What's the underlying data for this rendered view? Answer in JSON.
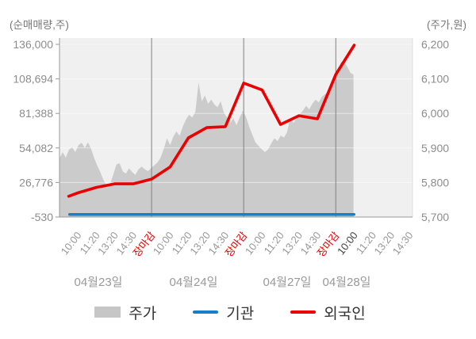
{
  "captions": {
    "left": "(순매매량,주)",
    "right": "(주가,원)"
  },
  "legend": {
    "items": [
      {
        "label": "주가",
        "type": "area",
        "color": "#c6c6c6"
      },
      {
        "label": "기관",
        "type": "line",
        "color": "#1a7ec6"
      },
      {
        "label": "외국인",
        "type": "line",
        "color": "#ea0000"
      }
    ]
  },
  "chart_data": {
    "type": "mixed-area-line",
    "title": "",
    "grid": true,
    "legend_position": "bottom",
    "x_axis": {
      "days": [
        {
          "date": "04월23일",
          "times": [
            "10:00",
            "11:20",
            "13:20",
            "14:30",
            "장마감"
          ]
        },
        {
          "date": "04월24일",
          "times": [
            "10:00",
            "11:20",
            "13:20",
            "14:30",
            "장마감"
          ]
        },
        {
          "date": "04월27일",
          "times": [
            "10:00",
            "11:20",
            "13:20",
            "14:30",
            "장마감"
          ]
        },
        {
          "date": "04월28일",
          "times": [
            "10:00",
            "11:20",
            "13:20",
            "14:30"
          ]
        }
      ],
      "label_color": "#999999",
      "close_label": "장마감",
      "close_color": "#e60000",
      "current_time": {
        "day": "04월28일",
        "time": "10:00"
      },
      "current_color": "#444444",
      "date_color": "#999999"
    },
    "left_axis": {
      "label": "(순매매량,주)",
      "min": -530,
      "max": 136000,
      "ticks": [
        "136,000",
        "108,694",
        "81,388",
        "54,082",
        "26,776",
        "-530"
      ]
    },
    "right_axis": {
      "label": "(주가,원)",
      "min": 5700,
      "max": 6200,
      "ticks": [
        "6,200",
        "6,100",
        "6,000",
        "5,900",
        "5,800",
        "5,700"
      ]
    },
    "series": [
      {
        "name": "주가",
        "type": "area",
        "axis": "right",
        "color": "#cbcbcb",
        "x_start_slot": -1.0,
        "x_end_slot": 14.96,
        "values": [
          5870,
          5888,
          5872,
          5895,
          5902,
          5888,
          5908,
          5915,
          5900,
          5916,
          5898,
          5870,
          5848,
          5828,
          5805,
          5790,
          5795,
          5822,
          5852,
          5856,
          5832,
          5826,
          5841,
          5830,
          5822,
          5838,
          5846,
          5838,
          5833,
          5842,
          5850,
          5858,
          5872,
          5898,
          5928,
          5908,
          5932,
          5948,
          5935,
          5962,
          5982,
          5996,
          5988,
          6005,
          6090,
          6035,
          6052,
          6028,
          6040,
          6026,
          6018,
          6035,
          6002,
          5988,
          5972,
          5986,
          5966,
          5988,
          6008,
          5990,
          5962,
          5938,
          5916,
          5906,
          5896,
          5888,
          5896,
          5914,
          5928,
          5920,
          5936,
          5930,
          5946,
          5988,
          5972,
          5986,
          5998,
          6008,
          6022,
          6012,
          6028,
          6040,
          6032,
          6048,
          6056,
          6062,
          6075,
          6095,
          6120,
          6148,
          6152,
          6135,
          6118,
          6112
        ]
      },
      {
        "name": "기관",
        "type": "line",
        "axis": "left",
        "color": "#1a7ec6",
        "x_start_slot": -0.45,
        "x_end_slot": 14.99,
        "values": [
          1500,
          1500
        ]
      },
      {
        "name": "외국인",
        "type": "line",
        "axis": "left",
        "color": "#ea0000",
        "x_slots": [
          -0.5,
          0,
          1,
          2,
          3,
          4,
          5,
          6,
          7,
          8,
          9,
          10,
          11,
          12,
          13,
          14,
          15
        ],
        "values": [
          15900,
          18600,
          22900,
          25700,
          25700,
          29500,
          39000,
          62100,
          70200,
          70900,
          105400,
          99900,
          72700,
          79600,
          77100,
          112200,
          135400
        ]
      }
    ],
    "plot_colors": {
      "background": "#f0f0f0",
      "gridline": "rgba(255,255,255,0.55)",
      "day_separator": "#818181",
      "spine": "#9a9a9a",
      "right_spine": "#dcdcdc",
      "tick_label": "#8c8c8c",
      "caption": "#777777"
    }
  }
}
